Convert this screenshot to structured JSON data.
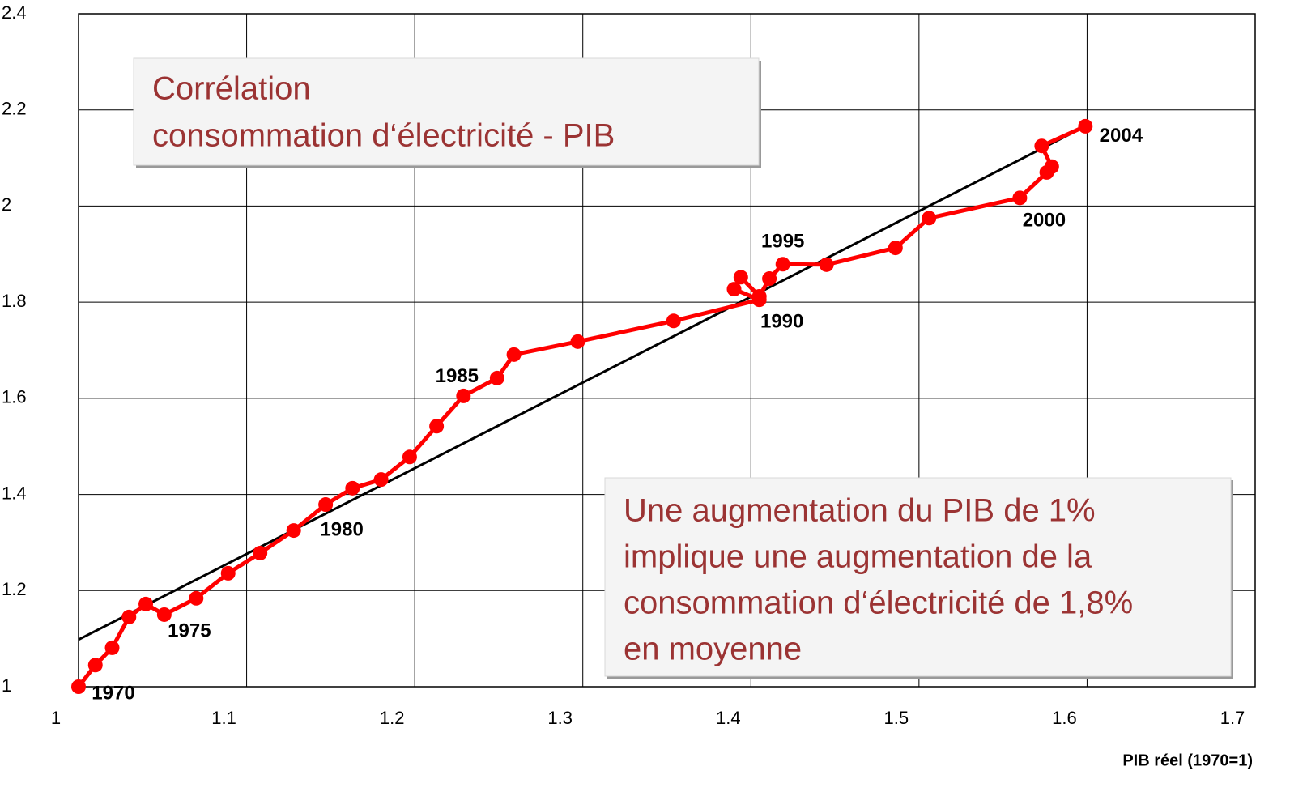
{
  "chart_data": {
    "type": "scatter",
    "x_label": "PIB réel (1970=1)",
    "x": [
      1.0,
      1.01,
      1.02,
      1.03,
      1.04,
      1.051,
      1.07,
      1.089,
      1.108,
      1.128,
      1.147,
      1.163,
      1.18,
      1.197,
      1.213,
      1.229,
      1.249,
      1.259,
      1.297,
      1.354,
      1.405,
      1.39,
      1.394,
      1.405,
      1.411,
      1.419,
      1.445,
      1.486,
      1.506,
      1.56,
      1.576,
      1.579,
      1.573,
      1.599
    ],
    "series": [
      {
        "color": "#ff0000",
        "values": [
          1.0,
          1.045,
          1.081,
          1.145,
          1.172,
          1.15,
          1.184,
          1.236,
          1.278,
          1.325,
          1.379,
          1.413,
          1.431,
          1.478,
          1.542,
          1.605,
          1.642,
          1.691,
          1.718,
          1.761,
          1.805,
          1.827,
          1.852,
          1.812,
          1.849,
          1.879,
          1.878,
          1.913,
          1.975,
          2.017,
          2.07,
          2.082,
          2.125,
          2.166
        ]
      }
    ],
    "trendline": {
      "color": "#000000",
      "x": [
        1.0,
        1.599
      ],
      "y": [
        1.098,
        2.166
      ]
    },
    "xlim": [
      1.0,
      1.7
    ],
    "xticks": [
      1,
      1.1,
      1.2,
      1.3,
      1.4,
      1.5,
      1.6,
      1.7
    ],
    "ylim": [
      1.0,
      2.4
    ],
    "yticks": [
      1,
      1.2,
      1.4,
      1.6,
      1.8,
      2,
      2.2,
      2.4
    ],
    "grid": true,
    "annotations": [
      {
        "text": "1970",
        "x": 1.0,
        "y": 1.0
      },
      {
        "text": "1975",
        "x": 1.051,
        "y": 1.15
      },
      {
        "text": "1980",
        "x": 1.147,
        "y": 1.379
      },
      {
        "text": "1985",
        "x": 1.229,
        "y": 1.605
      },
      {
        "text": "1990",
        "x": 1.405,
        "y": 1.805
      },
      {
        "text": "1995",
        "x": 1.419,
        "y": 1.879
      },
      {
        "text": "2000",
        "x": 1.56,
        "y": 2.017
      },
      {
        "text": "2004",
        "x": 1.599,
        "y": 2.166
      }
    ],
    "title_lines": [
      "Corrélation",
      "consommation d‘électricité - PIB"
    ],
    "note_lines": [
      "Une augmentation du PIB de 1%",
      "implique une augmentation de la",
      "consommation d‘électricité de 1,8%",
      "en moyenne"
    ]
  }
}
